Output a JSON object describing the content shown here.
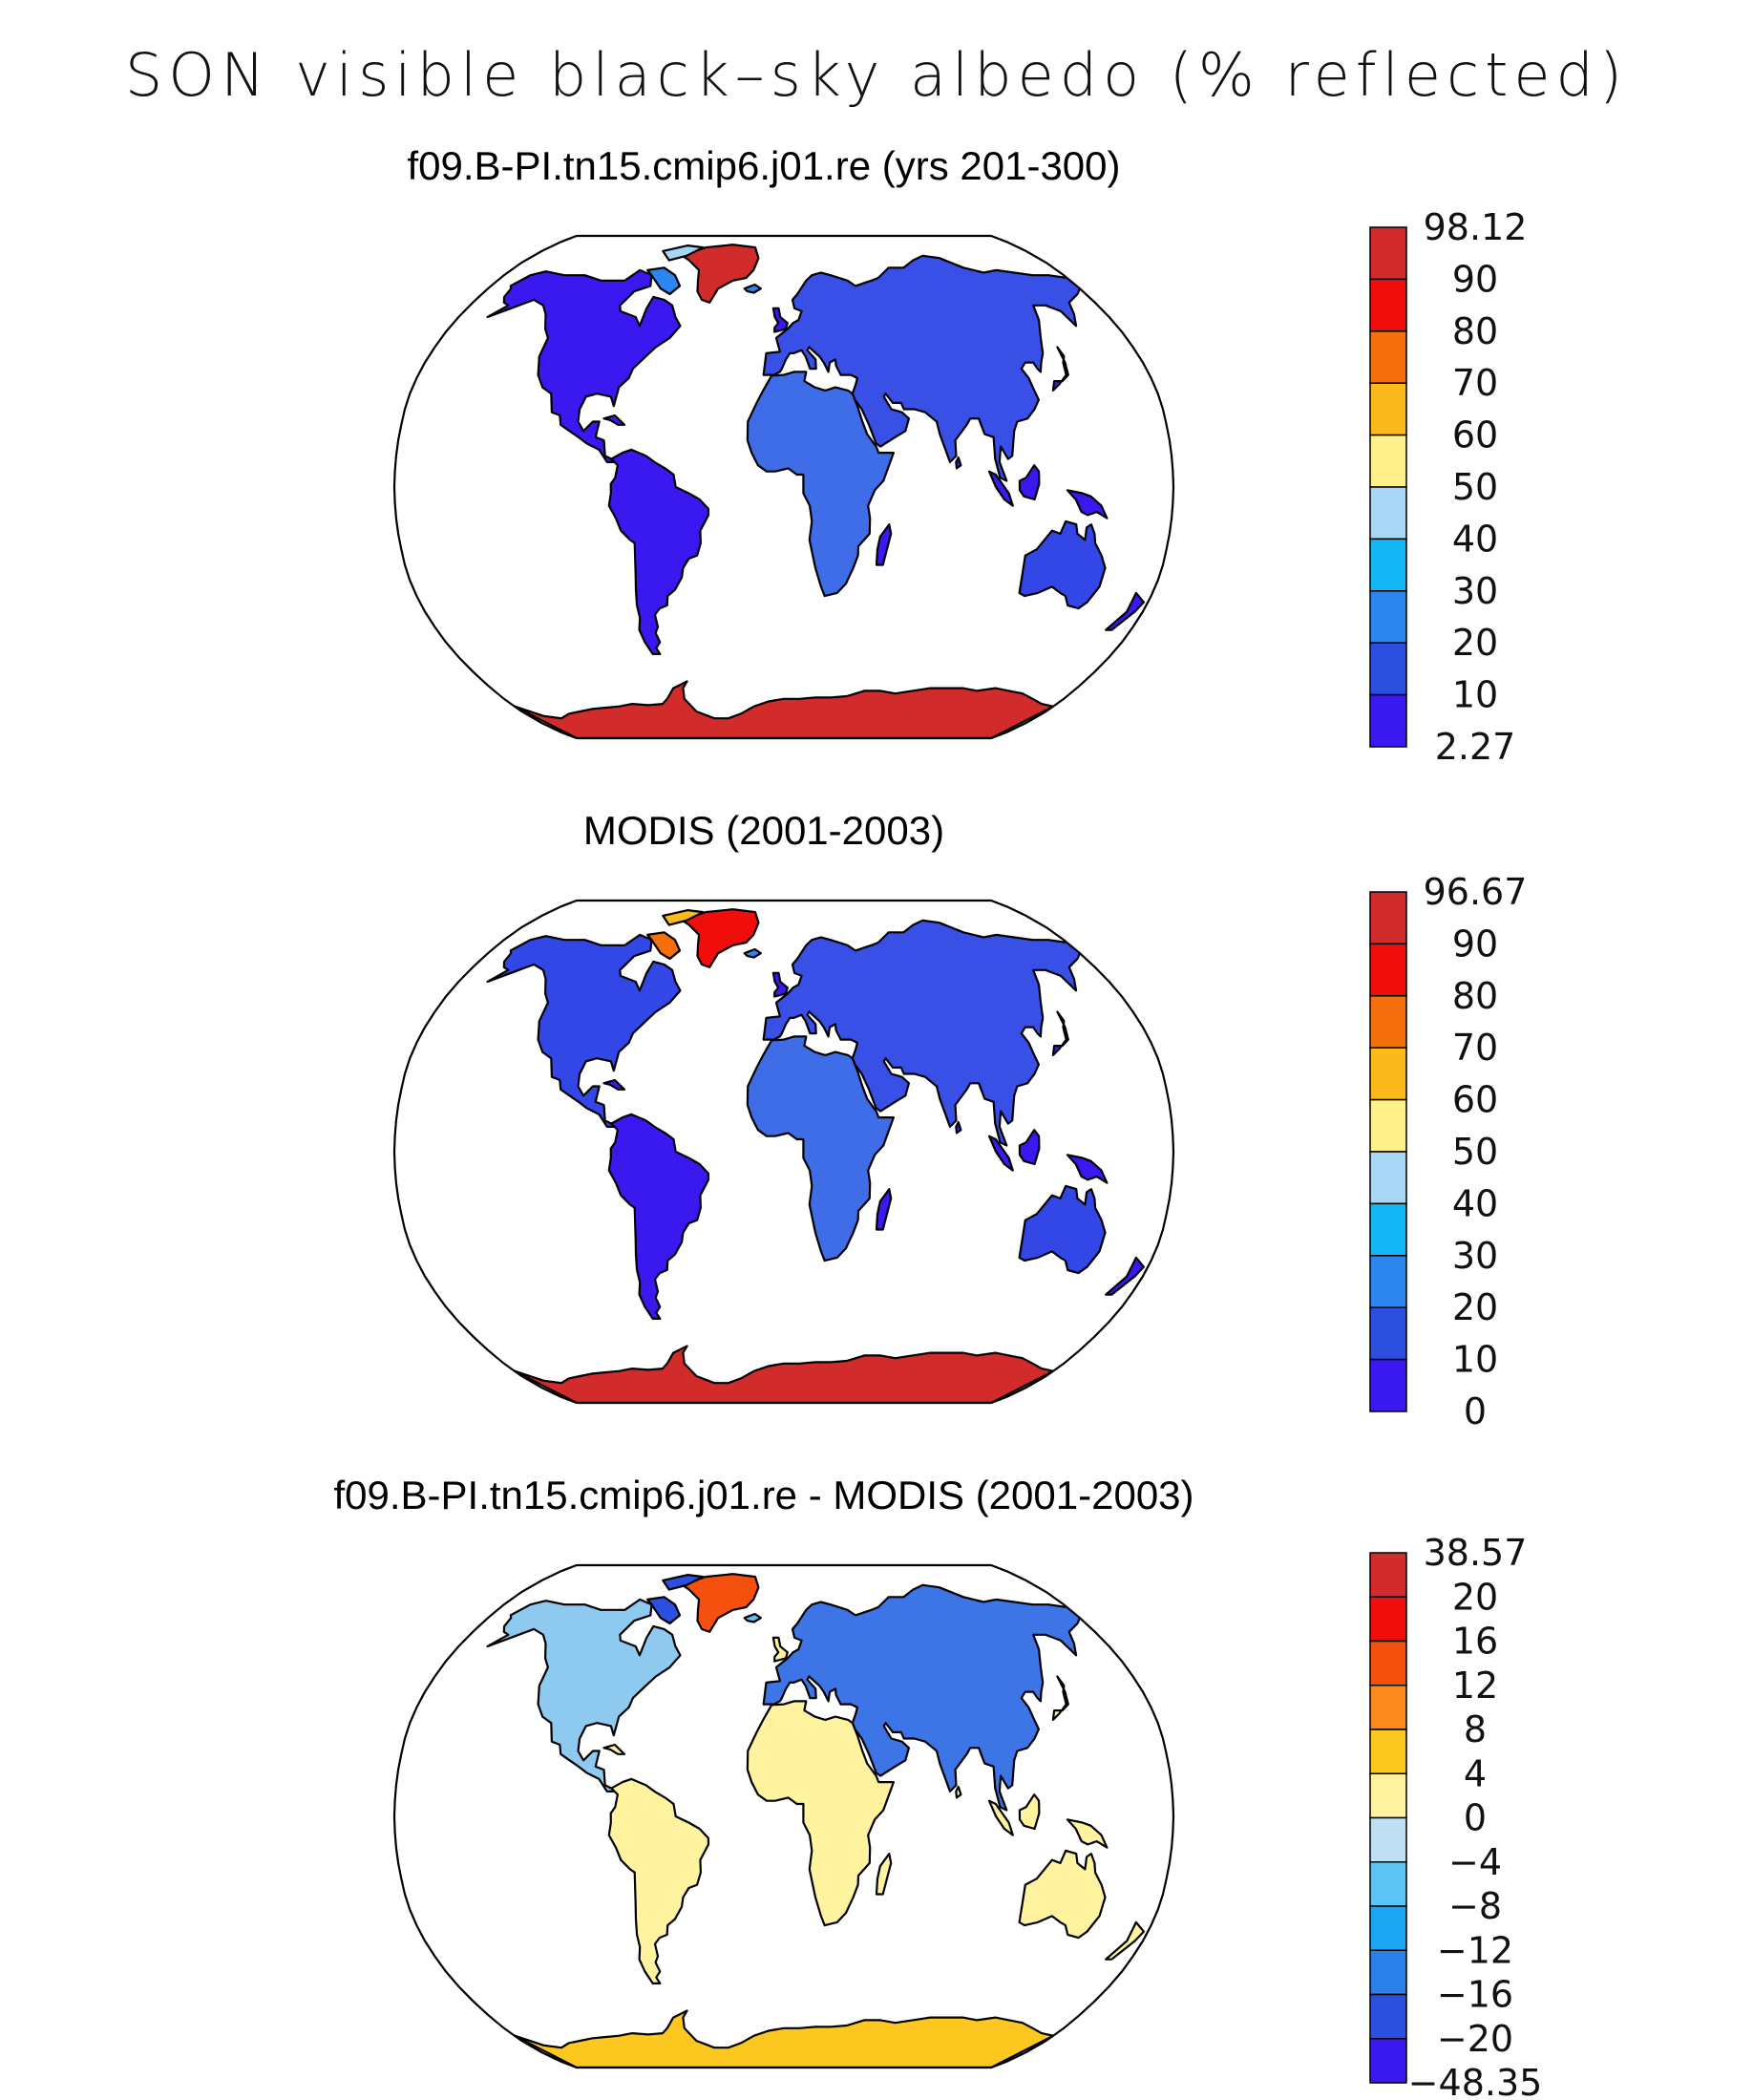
{
  "title": "SON visible black–sky albedo (% reflected)",
  "panels": [
    {
      "id": "model",
      "title": "f09.B-PI.tn15.cmip6.j01.re (yrs 201-300)",
      "colorbar": {
        "labels": [
          "98.12",
          "90",
          "80",
          "70",
          "60",
          "50",
          "40",
          "30",
          "20",
          "10",
          "2.27"
        ],
        "colors": [
          "#d22b2b",
          "#f20d0d",
          "#f5700d",
          "#fbb91c",
          "#fff08a",
          "#a8d6f5",
          "#12b8f5",
          "#2b86f0",
          "#2d4fe0",
          "#3a18f0"
        ]
      }
    },
    {
      "id": "obs",
      "title": "MODIS (2001-2003)",
      "colorbar": {
        "labels": [
          "96.67",
          "90",
          "80",
          "70",
          "60",
          "50",
          "40",
          "30",
          "20",
          "10",
          "0"
        ],
        "colors": [
          "#d22b2b",
          "#f20d0d",
          "#f5700d",
          "#fbb91c",
          "#fff08a",
          "#a8d6f5",
          "#12b8f5",
          "#2b86f0",
          "#2d4fe0",
          "#3a18f0"
        ]
      }
    },
    {
      "id": "diff",
      "title": "f09.B-PI.tn15.cmip6.j01.re - MODIS (2001-2003)",
      "colorbar": {
        "labels": [
          "38.57",
          "20",
          "16",
          "12",
          "8",
          "4",
          "0",
          "−4",
          "−8",
          "−12",
          "−16",
          "−20",
          "−48.35"
        ],
        "colors": [
          "#d22b2b",
          "#f20d0d",
          "#f5500d",
          "#fb8a1c",
          "#fcc81f",
          "#fff3a0",
          "#bfe0f5",
          "#5ec3f5",
          "#1aa6f2",
          "#2b7fe8",
          "#2d4fe0",
          "#3a18f0"
        ]
      }
    }
  ]
}
